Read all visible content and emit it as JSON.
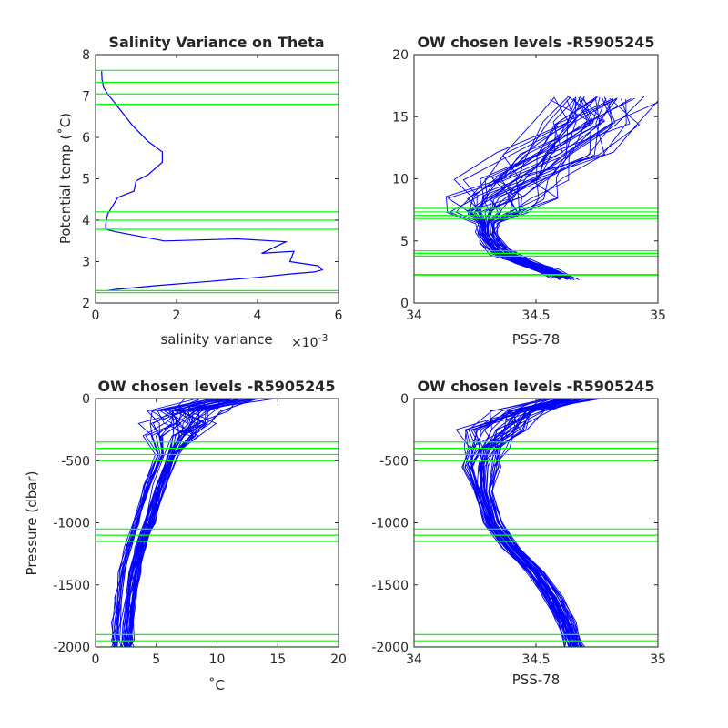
{
  "colors": {
    "profile": "#0000ff",
    "level": "#00ff00",
    "axis": "#262626"
  },
  "chart_data": [
    {
      "type": "line",
      "title": "Salinity Variance on Theta",
      "xlabel": "salinity variance",
      "ylabel": "Potential temp (˚C)",
      "x_exponent_label": "×10",
      "x_exponent_power": "-3",
      "x_scale": 0.001,
      "xlim": [
        0,
        0.006
      ],
      "ylim": [
        2,
        8
      ],
      "xticks": [
        0,
        2,
        4,
        6
      ],
      "xtick_labels": [
        "0",
        "2",
        "4",
        "6"
      ],
      "yticks": [
        2,
        3,
        4,
        5,
        6,
        7,
        8
      ],
      "ytick_labels": [
        "2",
        "3",
        "4",
        "5",
        "6",
        "7",
        "8"
      ],
      "series": [
        {
          "x": [
            0.00015,
            0.00016,
            0.0002,
            0.0003,
            0.0005,
            0.0009,
            0.0013,
            0.00165,
            0.00165,
            0.0013,
            0.001,
            0.00095,
            0.00055,
            0.0003,
            0.00025,
            0.00025,
            0.0005,
            0.0017,
            0.0035,
            0.0044,
            0.0047,
            0.0041,
            0.0049,
            0.0048,
            0.0055,
            0.0056,
            0.0054,
            0.0048,
            0.004,
            0.0028,
            0.0015,
            0.0005,
            0.0003
          ],
          "y": [
            7.6,
            7.4,
            7.2,
            7.05,
            6.8,
            6.3,
            5.9,
            5.65,
            5.4,
            5.1,
            4.95,
            4.7,
            4.55,
            4.15,
            3.9,
            3.78,
            3.72,
            3.5,
            3.55,
            3.5,
            3.48,
            3.2,
            3.25,
            3.0,
            2.9,
            2.8,
            2.75,
            2.7,
            2.62,
            2.52,
            2.42,
            2.33,
            2.3
          ]
        }
      ],
      "hlines": [
        2.25,
        2.3,
        3.78,
        4.0,
        4.2,
        6.8,
        7.05,
        7.33,
        7.62
      ]
    },
    {
      "type": "line",
      "title": "OW chosen levels -R5905245",
      "xlabel": "PSS-78",
      "ylabel": "",
      "xlim": [
        34,
        35
      ],
      "ylim": [
        0,
        20
      ],
      "xticks": [
        34,
        34.5,
        35
      ],
      "xtick_labels": [
        "34",
        "34.5",
        "35"
      ],
      "yticks": [
        0,
        5,
        10,
        15,
        20
      ],
      "ytick_labels": [
        "0",
        "5",
        "10",
        "15",
        "20"
      ],
      "hlines": [
        2.25,
        2.3,
        3.78,
        4.0,
        4.2,
        6.8,
        7.05,
        7.33,
        7.62
      ],
      "profiles": {
        "count": 40,
        "base": {
          "x": [
            34.62,
            34.55,
            34.45,
            34.37,
            34.32,
            34.3,
            34.3,
            34.32,
            34.36,
            34.45,
            34.58,
            34.72,
            34.77
          ],
          "y": [
            2.0,
            2.6,
            3.3,
            4.0,
            4.8,
            5.6,
            6.5,
            7.3,
            8.5,
            10.0,
            12.0,
            14.5,
            16.5
          ]
        }
      }
    },
    {
      "type": "line",
      "title": "OW chosen levels -R5905245",
      "xlabel": "˚C",
      "ylabel": "Pressure (dbar)",
      "xlim": [
        0,
        20
      ],
      "ylim": [
        -2000,
        0
      ],
      "xticks": [
        0,
        5,
        10,
        15,
        20
      ],
      "xtick_labels": [
        "0",
        "5",
        "10",
        "15",
        "20"
      ],
      "yticks": [
        -2000,
        -1500,
        -1000,
        -500,
        0
      ],
      "ytick_labels": [
        "-2000",
        "-1500",
        "-1000",
        "-500",
        "0"
      ],
      "hlines": [
        -350,
        -400,
        -450,
        -500,
        -1050,
        -1100,
        -1150,
        -1900,
        -1950,
        -2000
      ],
      "profiles": {
        "count": 40,
        "base": {
          "x": [
            11.0,
            7.5,
            6.8,
            6.5,
            6.0,
            5.0,
            4.1,
            3.4,
            2.9,
            2.6,
            2.4,
            2.3,
            2.25
          ],
          "y": [
            0,
            -100,
            -200,
            -300,
            -450,
            -700,
            -1000,
            -1200,
            -1400,
            -1600,
            -1800,
            -1950,
            -2000
          ]
        }
      }
    },
    {
      "type": "line",
      "title": "OW chosen levels -R5905245",
      "xlabel": "PSS-78",
      "ylabel": "",
      "xlim": [
        34,
        35
      ],
      "ylim": [
        -2000,
        0
      ],
      "xticks": [
        34,
        34.5,
        35
      ],
      "xtick_labels": [
        "34",
        "34.5",
        "35"
      ],
      "yticks": [
        -2000,
        -1500,
        -1000,
        -500,
        0
      ],
      "ytick_labels": [
        "-2000",
        "-1500",
        "-1000",
        "-500",
        "0"
      ],
      "hlines": [
        -350,
        -400,
        -450,
        -500,
        -1050,
        -1100,
        -1150,
        -1900,
        -1950,
        -2000
      ],
      "profiles": {
        "count": 40,
        "base": {
          "x": [
            34.65,
            34.45,
            34.35,
            34.3,
            34.27,
            34.28,
            34.32,
            34.4,
            34.5,
            34.57,
            34.62,
            34.65,
            34.66
          ],
          "y": [
            0,
            -100,
            -250,
            -400,
            -550,
            -750,
            -1000,
            -1200,
            -1400,
            -1600,
            -1800,
            -1950,
            -2000
          ]
        }
      }
    }
  ]
}
